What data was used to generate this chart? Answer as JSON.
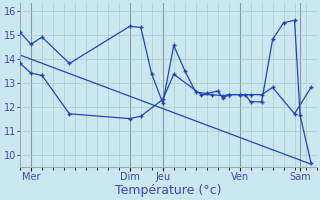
{
  "xlabel": "Température (°c)",
  "bg_color": "#cce8ef",
  "line_color": "#2244bb",
  "grid_color": "#aacccc",
  "tick_color": "#4444bb",
  "ylim": [
    9.5,
    16.3
  ],
  "xlim": [
    0,
    54
  ],
  "yticks": [
    10,
    11,
    12,
    13,
    14,
    15,
    16
  ],
  "day_tick_positions": [
    2,
    20,
    26,
    40,
    51
  ],
  "day_labels": [
    "Mer",
    "Dim",
    "Jeu",
    "Ven",
    "Sam"
  ],
  "vline_positions": [
    2,
    20,
    26,
    40,
    51
  ],
  "line1_x": [
    0,
    2,
    4,
    9,
    20,
    22,
    24,
    26,
    28,
    30,
    32,
    34,
    36,
    37,
    38,
    40,
    41,
    42,
    44,
    46,
    48,
    50,
    51,
    53
  ],
  "line1_y": [
    15.1,
    14.6,
    14.9,
    13.8,
    15.35,
    15.3,
    13.35,
    12.15,
    14.55,
    13.5,
    12.6,
    12.55,
    12.65,
    12.35,
    12.5,
    12.5,
    12.5,
    12.2,
    12.2,
    14.8,
    15.5,
    15.6,
    11.65,
    9.65
  ],
  "line2_x": [
    0,
    2,
    4,
    9,
    20,
    22,
    26,
    28,
    33,
    35,
    37,
    38,
    40,
    42,
    44,
    46,
    50,
    53
  ],
  "line2_y": [
    13.8,
    13.4,
    13.3,
    11.7,
    11.5,
    11.6,
    12.3,
    13.35,
    12.5,
    12.5,
    12.45,
    12.5,
    12.5,
    12.5,
    12.5,
    12.8,
    11.7,
    12.8
  ],
  "line3_x": [
    0,
    53
  ],
  "line3_y": [
    14.15,
    9.6
  ],
  "xlabel_fontsize": 9,
  "ytick_fontsize": 7,
  "xtick_fontsize": 7
}
